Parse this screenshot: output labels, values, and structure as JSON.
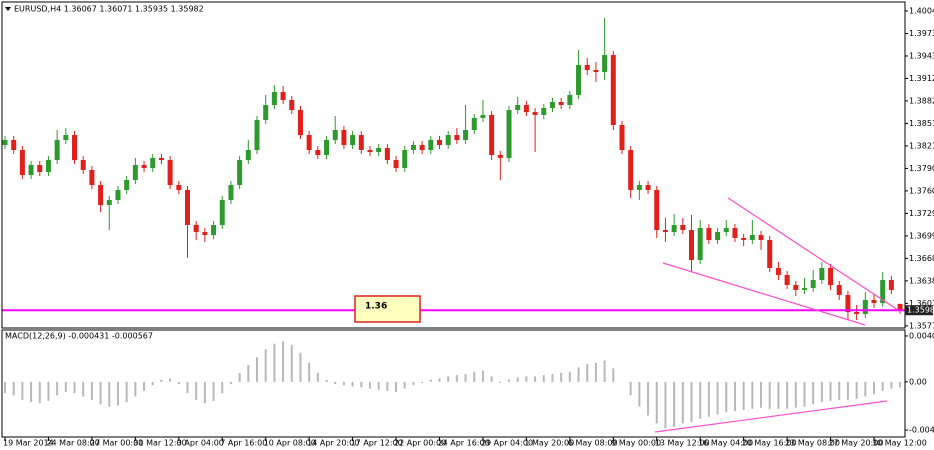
{
  "chart_data": [
    {
      "type": "candlestick",
      "title": "EURUSD,H4 1.36067 1.36071 1.35935 1.35982",
      "up_color": "#2e9a2e",
      "down_color": "#e0201b",
      "categories": [
        "19 Mar 2014",
        null,
        null,
        null,
        null,
        "24 Mar 08:00",
        null,
        null,
        null,
        null,
        "27 Mar 00:00",
        null,
        null,
        null,
        null,
        "31 Mar 12:00",
        null,
        null,
        null,
        null,
        "3 Apr 04:00",
        null,
        null,
        null,
        null,
        "7 Apr 16:00",
        null,
        null,
        null,
        null,
        "10 Apr 08:00",
        null,
        null,
        null,
        null,
        "14 Apr 20:00",
        null,
        null,
        null,
        null,
        "17 Apr 12:00",
        null,
        null,
        null,
        null,
        "22 Apr 00:00",
        null,
        null,
        null,
        null,
        "24 Apr 16:00",
        null,
        null,
        null,
        null,
        "29 Apr 04:00",
        null,
        null,
        null,
        null,
        "1 May 20:00",
        null,
        null,
        null,
        null,
        "6 May 08:00",
        null,
        null,
        null,
        null,
        "9 May 00:00",
        null,
        null,
        null,
        null,
        "13 May 12:00",
        null,
        null,
        null,
        null,
        "16 May 04:00",
        null,
        null,
        null,
        null,
        "20 May 16:00",
        null,
        null,
        null,
        null,
        "23 May 08:00",
        null,
        null,
        null,
        null,
        "27 May 20:00",
        null,
        null,
        null,
        null,
        "30 May 12:00",
        null,
        null,
        null
      ],
      "ohlc": [
        [
          1.38223,
          1.38345,
          1.38169,
          1.38291
        ],
        [
          1.38291,
          1.38345,
          1.38101,
          1.38155
        ],
        [
          1.38155,
          1.38209,
          1.37762,
          1.37816
        ],
        [
          1.37816,
          1.38006,
          1.37762,
          1.37952
        ],
        [
          1.37952,
          1.38006,
          1.37802,
          1.37857
        ],
        [
          1.37857,
          1.38074,
          1.37802,
          1.38019
        ],
        [
          1.38019,
          1.38426,
          1.37965,
          1.38291
        ],
        [
          1.38291,
          1.38453,
          1.38236,
          1.38358
        ],
        [
          1.38358,
          1.38413,
          1.37965,
          1.38019
        ],
        [
          1.38019,
          1.38074,
          1.3783,
          1.37884
        ],
        [
          1.37884,
          1.37938,
          1.37626,
          1.3768
        ],
        [
          1.3768,
          1.37735,
          1.37314,
          1.37409
        ],
        [
          1.37409,
          1.37531,
          1.3707,
          1.37477
        ],
        [
          1.37477,
          1.37667,
          1.37423,
          1.37613
        ],
        [
          1.37613,
          1.37802,
          1.37558,
          1.37748
        ],
        [
          1.37748,
          1.38047,
          1.37694,
          1.37952
        ],
        [
          1.37952,
          1.38006,
          1.37857,
          1.37911
        ],
        [
          1.37911,
          1.38101,
          1.37857,
          1.38047
        ],
        [
          1.38047,
          1.38101,
          1.37965,
          1.38019
        ],
        [
          1.38019,
          1.38074,
          1.37626,
          1.3768
        ],
        [
          1.3768,
          1.37735,
          1.37558,
          1.37613
        ],
        [
          1.37613,
          1.37667,
          1.36691,
          1.37138
        ],
        [
          1.37138,
          1.37192,
          1.36935,
          1.37043
        ],
        [
          1.37043,
          1.37097,
          1.36907,
          1.37002
        ],
        [
          1.37002,
          1.37192,
          1.36948,
          1.37138
        ],
        [
          1.37138,
          1.37531,
          1.37084,
          1.37477
        ],
        [
          1.37477,
          1.37735,
          1.37423,
          1.3768
        ],
        [
          1.3768,
          1.38074,
          1.37626,
          1.38019
        ],
        [
          1.38019,
          1.38291,
          1.37965,
          1.38155
        ],
        [
          1.38155,
          1.38616,
          1.38101,
          1.38562
        ],
        [
          1.38562,
          1.38901,
          1.38508,
          1.38765
        ],
        [
          1.38765,
          1.39036,
          1.38711,
          1.38941
        ],
        [
          1.38941,
          1.39023,
          1.38779,
          1.38833
        ],
        [
          1.38833,
          1.38887,
          1.38643,
          1.38697
        ],
        [
          1.38697,
          1.38752,
          1.38304,
          1.38358
        ],
        [
          1.38358,
          1.38413,
          1.38101,
          1.38155
        ],
        [
          1.38155,
          1.38209,
          1.38033,
          1.38087
        ],
        [
          1.38087,
          1.38345,
          1.38033,
          1.38291
        ],
        [
          1.38291,
          1.38616,
          1.38236,
          1.38426
        ],
        [
          1.38426,
          1.3848,
          1.38169,
          1.38223
        ],
        [
          1.38223,
          1.38413,
          1.38169,
          1.38358
        ],
        [
          1.38358,
          1.38413,
          1.38101,
          1.38155
        ],
        [
          1.38155,
          1.38209,
          1.38074,
          1.38128
        ],
        [
          1.38128,
          1.38236,
          1.38074,
          1.38182
        ],
        [
          1.38182,
          1.38236,
          1.37965,
          1.38019
        ],
        [
          1.38019,
          1.38074,
          1.37857,
          1.37911
        ],
        [
          1.37911,
          1.38209,
          1.37857,
          1.38155
        ],
        [
          1.38155,
          1.38277,
          1.38101,
          1.38223
        ],
        [
          1.38223,
          1.38277,
          1.38101,
          1.38155
        ],
        [
          1.38155,
          1.38345,
          1.38101,
          1.38291
        ],
        [
          1.38291,
          1.38345,
          1.38169,
          1.38223
        ],
        [
          1.38223,
          1.38413,
          1.38169,
          1.38358
        ],
        [
          1.38358,
          1.38453,
          1.38236,
          1.38291
        ],
        [
          1.38291,
          1.38765,
          1.38236,
          1.38426
        ],
        [
          1.38426,
          1.38643,
          1.38372,
          1.38589
        ],
        [
          1.38589,
          1.38833,
          1.38535,
          1.3863
        ],
        [
          1.3863,
          1.38684,
          1.38019,
          1.38087
        ],
        [
          1.38087,
          1.38141,
          1.37748,
          1.38047
        ],
        [
          1.38047,
          1.38752,
          1.37992,
          1.38697
        ],
        [
          1.38697,
          1.38874,
          1.38643,
          1.38765
        ],
        [
          1.38765,
          1.38819,
          1.38616,
          1.3867
        ],
        [
          1.3867,
          1.38725,
          1.38128,
          1.3863
        ],
        [
          1.3863,
          1.38779,
          1.38575,
          1.38725
        ],
        [
          1.38725,
          1.3886,
          1.3867,
          1.38806
        ],
        [
          1.38806,
          1.3886,
          1.38711,
          1.38765
        ],
        [
          1.38765,
          1.38955,
          1.38711,
          1.38901
        ],
        [
          1.38901,
          1.39511,
          1.38847,
          1.39308
        ],
        [
          1.39308,
          1.39403,
          1.39172,
          1.3924
        ],
        [
          1.3924,
          1.39348,
          1.39077,
          1.39213
        ],
        [
          1.39213,
          1.39945,
          1.39104,
          1.39443
        ],
        [
          1.39443,
          1.39497,
          1.38426,
          1.38494
        ],
        [
          1.38494,
          1.38548,
          1.38101,
          1.38155
        ],
        [
          1.38155,
          1.38209,
          1.37504,
          1.37613
        ],
        [
          1.37613,
          1.37735,
          1.37477,
          1.3768
        ],
        [
          1.3768,
          1.37735,
          1.37558,
          1.37613
        ],
        [
          1.37613,
          1.37667,
          1.36962,
          1.3707
        ],
        [
          1.3707,
          1.37233,
          1.36907,
          1.37043
        ],
        [
          1.37043,
          1.37287,
          1.36989,
          1.37138
        ],
        [
          1.37138,
          1.37233,
          1.37016,
          1.3707
        ],
        [
          1.3707,
          1.37274,
          1.36501,
          1.36663
        ],
        [
          1.36663,
          1.37206,
          1.36609,
          1.37097
        ],
        [
          1.37097,
          1.37152,
          1.3688,
          1.36935
        ],
        [
          1.36935,
          1.37097,
          1.3688,
          1.37043
        ],
        [
          1.37043,
          1.37206,
          1.36989,
          1.37097
        ],
        [
          1.37097,
          1.37152,
          1.36907,
          1.36962
        ],
        [
          1.36962,
          1.37016,
          1.36853,
          1.36935
        ],
        [
          1.36935,
          1.37206,
          1.3688,
          1.37002
        ],
        [
          1.37002,
          1.37057,
          1.36799,
          1.36935
        ],
        [
          1.36935,
          1.36989,
          1.36501,
          1.36555
        ],
        [
          1.36555,
          1.36636,
          1.36392,
          1.3646
        ],
        [
          1.3646,
          1.36514,
          1.3627,
          1.36324
        ],
        [
          1.36324,
          1.36379,
          1.36175,
          1.36257
        ],
        [
          1.36257,
          1.36419,
          1.36202,
          1.36284
        ],
        [
          1.36284,
          1.36528,
          1.36229,
          1.36392
        ],
        [
          1.36392,
          1.36636,
          1.36338,
          1.36555
        ],
        [
          1.36555,
          1.36609,
          1.36257,
          1.36324
        ],
        [
          1.36324,
          1.36379,
          1.36121,
          1.36189
        ],
        [
          1.36189,
          1.36243,
          1.3585,
          1.35958
        ],
        [
          1.35958,
          1.36053,
          1.3585,
          1.35931
        ],
        [
          1.35931,
          1.36229,
          1.35877,
          1.36121
        ],
        [
          1.36121,
          1.36202,
          1.36013,
          1.3608
        ],
        [
          1.3608,
          1.36501,
          1.36026,
          1.36392
        ],
        [
          1.36392,
          1.36446,
          1.36202,
          1.36257
        ],
        [
          1.36067,
          1.36071,
          1.35935,
          1.35982
        ]
      ],
      "ylim": [
        1.35741,
        1.40162
      ],
      "yticks": [
        {
          "value": 1.4004,
          "label": "1.40040"
        },
        1.39735,
        {
          "value": 1.3943,
          "label": "1.39430"
        },
        1.39125,
        {
          "value": 1.3882,
          "label": "1.38820"
        },
        1.38515,
        {
          "value": 1.3821,
          "label": "1.38210"
        },
        1.37905,
        {
          "value": 1.376,
          "label": "1.37600"
        },
        1.37295,
        {
          "value": 1.3699,
          "label": "1.36990"
        },
        1.36685,
        {
          "value": 1.3638,
          "label": "1.36380"
        },
        1.36075,
        {
          "value": 1.3577,
          "label": "1.35770"
        }
      ],
      "last_price": 1.35982,
      "last_price_color": "#ff00ff",
      "annotation": "1.36"
    },
    {
      "type": "bar",
      "title": "MACD(12,26,9) -0.000431 -0.000567",
      "color": "#b8b8b8",
      "values": [
        -0.001,
        -0.0012,
        -0.0016,
        -0.0018,
        -0.0019,
        -0.0017,
        -0.0012,
        -0.0009,
        -0.001,
        -0.0013,
        -0.0016,
        -0.002,
        -0.0022,
        -0.0021,
        -0.0018,
        -0.0013,
        -0.0008,
        -0.0003,
        0.0002,
        0.0003,
        -0.0002,
        -0.001,
        -0.0016,
        -0.0019,
        -0.0017,
        -0.001,
        -0.0002,
        0.0008,
        0.0015,
        0.0022,
        0.0029,
        0.0034,
        0.0036,
        0.0033,
        0.0026,
        0.0017,
        0.0008,
        0.0002,
        -0.0002,
        -0.0003,
        -0.0004,
        -0.0005,
        -0.0006,
        -0.0007,
        -0.0008,
        -0.0009,
        -0.0006,
        -0.0003,
        -0.0001,
        0.0002,
        0.0003,
        0.0005,
        0.0006,
        0.0007,
        0.0009,
        0.001,
        0.0005,
        -0.0001,
        0.0002,
        0.0004,
        0.0005,
        0.0005,
        0.0006,
        0.0007,
        0.0008,
        0.0009,
        0.0013,
        0.0016,
        0.0017,
        0.0019,
        0.0012,
        0.0,
        -0.0012,
        -0.0022,
        -0.003,
        -0.0037,
        -0.0041,
        -0.004,
        -0.0037,
        -0.0036,
        -0.0033,
        -0.0031,
        -0.0029,
        -0.0027,
        -0.0026,
        -0.0025,
        -0.0024,
        -0.0023,
        -0.0024,
        -0.0024,
        -0.0024,
        -0.0023,
        -0.0022,
        -0.002,
        -0.0018,
        -0.0017,
        -0.0016,
        -0.0016,
        -0.0015,
        -0.0013,
        -0.0011,
        -0.0008,
        -0.0006,
        -0.0005
      ],
      "ylim": [
        -0.00491,
        0.00462
      ],
      "yticks": [
        0.00409,
        {
          "value": 0,
          "label": "0.00"
        },
        -0.00429
      ]
    }
  ]
}
